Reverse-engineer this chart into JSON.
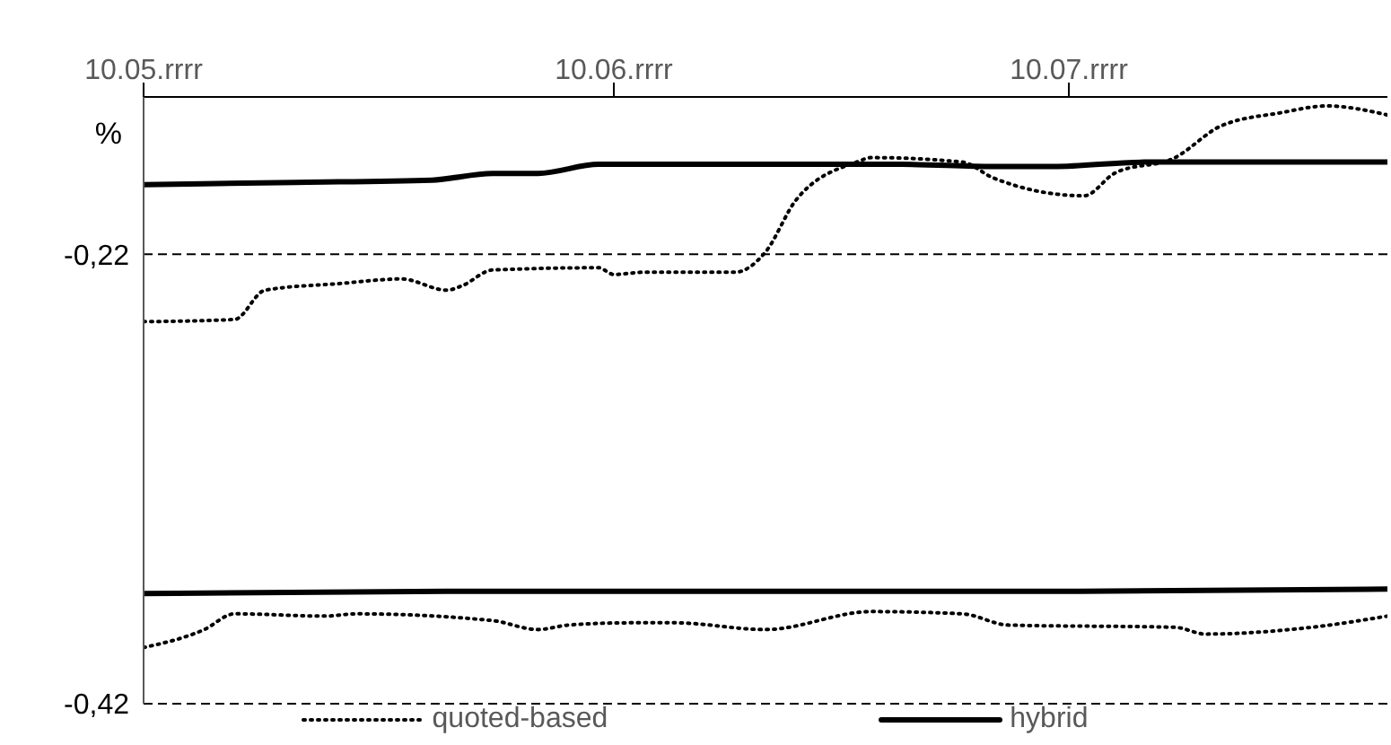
{
  "chart_data": {
    "type": "line",
    "ylabel": "%",
    "xlim": [
      "--05-10",
      "--07-31"
    ],
    "xticks": [
      {
        "value": "--05-10",
        "label": "10.05.rrrr"
      },
      {
        "value": "--06-10",
        "label": "10.06.rrrr"
      },
      {
        "value": "--07-10",
        "label": "10.07.rrrr"
      }
    ],
    "ylim": [
      -0.42,
      -0.15
    ],
    "yticks": [
      {
        "value": -0.22,
        "label": "-0,22"
      },
      {
        "value": -0.42,
        "label": "-0,42"
      }
    ],
    "grid": "y",
    "legend": "bottom",
    "series": [
      {
        "name": "quoted-based",
        "color": "#000000",
        "line_style": "dotted",
        "x": [
          "--05-10",
          "--05-16",
          "--05-18",
          "--05-23",
          "--05-27",
          "--05-30",
          "--05-31",
          "--06-02",
          "--06-09",
          "--06-10",
          "--06-12",
          "--06-18",
          "--06-20",
          "--06-22",
          "--06-26",
          "--06-27",
          "--07-03",
          "--07-05",
          "--07-11",
          "--07-13",
          "--07-17",
          "--07-20",
          "--07-24",
          "--07-27",
          "--07-31"
        ],
        "values": [
          -0.25,
          -0.249,
          -0.236,
          -0.233,
          -0.231,
          -0.236,
          -0.234,
          -0.227,
          -0.226,
          -0.229,
          -0.228,
          -0.228,
          -0.219,
          -0.196,
          -0.179,
          -0.177,
          -0.179,
          -0.186,
          -0.194,
          -0.184,
          -0.177,
          -0.163,
          -0.157,
          -0.154,
          -0.158
        ]
      },
      {
        "name": "hybrid",
        "color": "#000000",
        "line_style": "solid",
        "x": [
          "--05-10",
          "--05-20",
          "--05-29",
          "--06-02",
          "--06-05",
          "--06-09",
          "--06-19",
          "--06-29",
          "--07-05",
          "--07-09",
          "--07-15",
          "--07-31"
        ],
        "values": [
          -0.189,
          -0.188,
          -0.187,
          -0.184,
          -0.184,
          -0.18,
          -0.18,
          -0.18,
          -0.181,
          -0.181,
          -0.179,
          -0.179
        ]
      },
      {
        "color": "#000000",
        "line_style": "dotted",
        "x": [
          "--05-10",
          "--05-14",
          "--05-16",
          "--05-22",
          "--05-24",
          "--06-02",
          "--06-05",
          "--06-07",
          "--06-11",
          "--06-14",
          "--06-20",
          "--06-27",
          "--07-03",
          "--07-06",
          "--07-17",
          "--07-19",
          "--07-26",
          "--07-31"
        ],
        "values": [
          -0.395,
          -0.387,
          -0.38,
          -0.381,
          -0.38,
          -0.383,
          -0.387,
          -0.385,
          -0.384,
          -0.384,
          -0.387,
          -0.379,
          -0.38,
          -0.385,
          -0.386,
          -0.389,
          -0.386,
          -0.381
        ]
      },
      {
        "color": "#000000",
        "line_style": "solid",
        "x": [
          "--05-10",
          "--05-30",
          "--06-19",
          "--07-09",
          "--07-31"
        ],
        "values": [
          -0.371,
          -0.37,
          -0.37,
          -0.37,
          -0.369
        ]
      }
    ]
  }
}
